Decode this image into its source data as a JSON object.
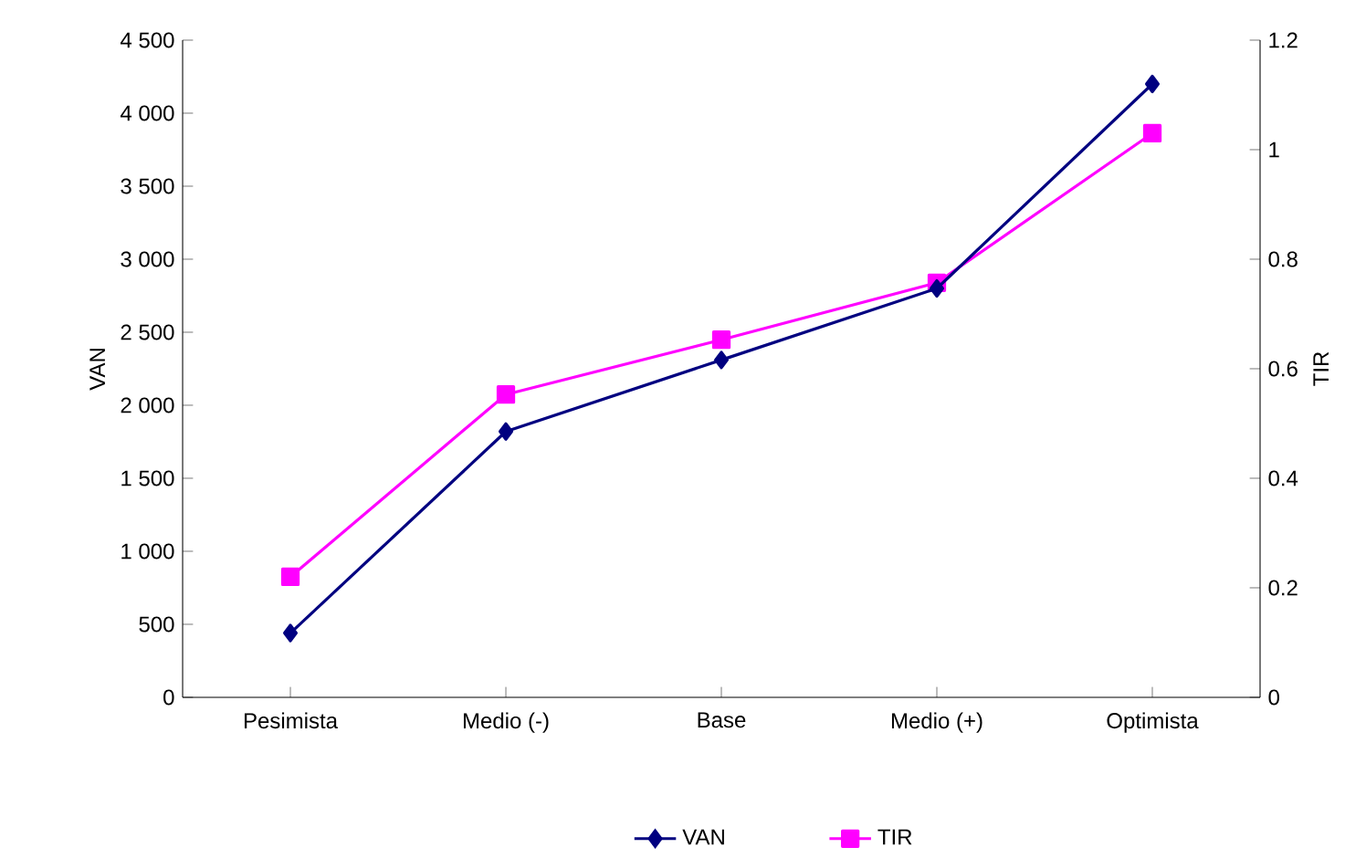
{
  "chart_data": {
    "type": "line",
    "categories": [
      "Pesimista",
      "Medio (-)",
      "Base",
      "Medio (+)",
      "Optimista"
    ],
    "ylabel": "VAN",
    "y2label": "TIR",
    "ylim": [
      0,
      4500
    ],
    "yticks": [
      0,
      500,
      {
        "value": 1000,
        "label": "1 000"
      },
      {
        "value": 1500,
        "label": "1 500"
      },
      {
        "value": 2000,
        "label": "2 000"
      },
      {
        "value": 2500,
        "label": "2 500"
      },
      {
        "value": 3000,
        "label": "3 000"
      },
      {
        "value": 3500,
        "label": "3 500"
      },
      {
        "value": 4000,
        "label": "4 000"
      },
      {
        "value": 4500,
        "label": "4 500"
      }
    ],
    "y2lim": [
      0,
      1.2
    ],
    "y2ticks": [
      0,
      0.2,
      0.4,
      0.6,
      0.8,
      1,
      1.2
    ],
    "series": [
      {
        "name": "VAN",
        "color": "#000080",
        "marker": "diamond",
        "values": [
          440,
          1820,
          2310,
          2800,
          4200
        ]
      },
      {
        "name": "TIR",
        "color": "#ff00ff",
        "marker": "square",
        "axis": "y2",
        "values": [
          0.22,
          0.553,
          0.653,
          0.757,
          1.03
        ]
      }
    ],
    "grid": false,
    "legend": "bottom",
    "line_style": "solid"
  }
}
